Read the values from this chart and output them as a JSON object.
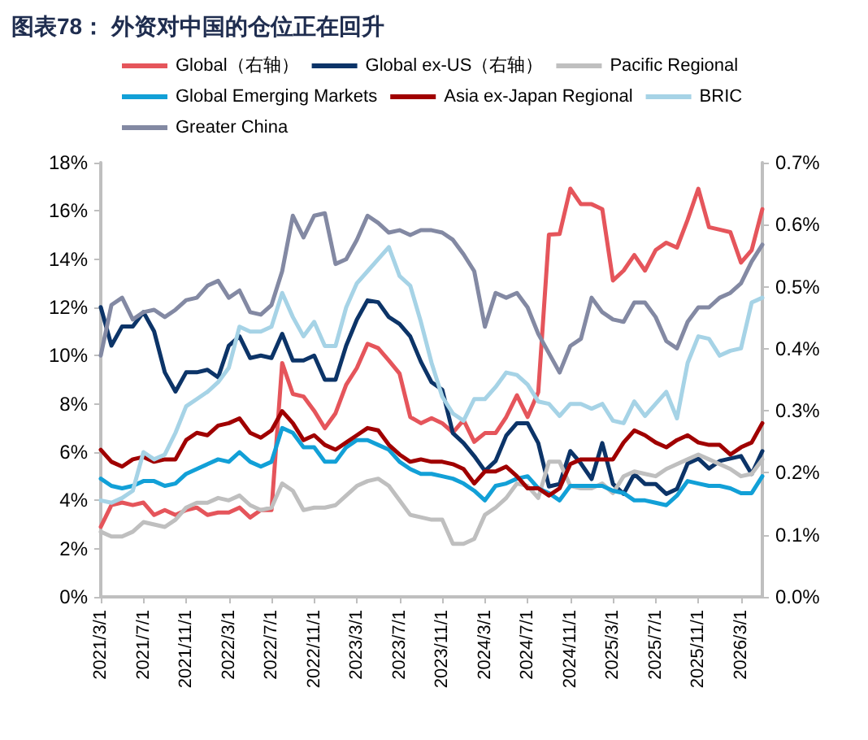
{
  "chart_data": {
    "type": "line",
    "title": "图表78： 外资对中国的仓位正在回升",
    "categories": [
      "2021/3/1",
      null,
      null,
      null,
      "2021/7/1",
      null,
      null,
      null,
      "2021/11/1",
      null,
      null,
      null,
      "2022/3/1",
      null,
      null,
      null,
      "2022/7/1",
      null,
      null,
      null,
      "2022/11/1",
      null,
      null,
      null,
      "2023/3/1",
      null,
      null,
      null,
      "2023/7/1",
      null,
      null,
      null,
      "2023/11/1",
      null,
      null,
      null,
      "2024/3/1",
      null,
      null,
      null,
      "2024/7/1",
      null,
      null,
      null,
      "2024/11/1",
      null,
      null,
      null,
      "2025/3/1",
      null,
      null,
      null,
      "2025/7/1",
      null,
      null,
      null,
      "2025/11/1",
      null,
      null,
      null,
      "2026/3/1",
      null,
      null
    ],
    "series": [
      {
        "name": "Global（右轴）",
        "color": "#e5555b",
        "axis": "y2",
        "values": [
          0.113,
          0.148,
          0.152,
          0.148,
          0.152,
          0.132,
          0.14,
          0.132,
          0.14,
          0.144,
          0.132,
          0.136,
          0.136,
          0.144,
          0.128,
          0.14,
          0.14,
          0.377,
          0.327,
          0.323,
          0.3,
          0.272,
          0.296,
          0.342,
          0.369,
          0.408,
          0.401,
          0.381,
          0.36,
          0.29,
          0.28,
          0.288,
          0.28,
          0.265,
          0.285,
          0.25,
          0.264,
          0.264,
          0.29,
          0.325,
          0.29,
          0.33,
          0.584,
          0.585,
          0.658,
          0.633,
          0.633,
          0.625,
          0.51,
          0.526,
          0.551,
          0.526,
          0.559,
          0.571,
          0.563,
          0.608,
          0.658,
          0.596,
          0.592,
          0.588,
          0.539,
          0.559,
          0.625
        ]
      },
      {
        "name": "Global ex-US（右轴）",
        "color": "#0c3468",
        "axis": "y2",
        "values": [
          0.467,
          0.405,
          0.436,
          0.436,
          0.459,
          0.428,
          0.362,
          0.331,
          0.362,
          0.362,
          0.366,
          0.354,
          0.405,
          0.42,
          0.385,
          0.389,
          0.385,
          0.424,
          0.381,
          0.381,
          0.389,
          0.35,
          0.35,
          0.405,
          0.447,
          0.478,
          0.475,
          0.451,
          0.44,
          0.42,
          0.379,
          0.346,
          0.334,
          0.264,
          0.248,
          0.227,
          0.203,
          0.219,
          0.26,
          0.28,
          0.28,
          0.248,
          0.178,
          0.182,
          0.235,
          0.215,
          0.19,
          0.248,
          0.182,
          0.166,
          0.198,
          0.182,
          0.182,
          0.166,
          0.174,
          0.215,
          0.223,
          0.207,
          0.219,
          0.223,
          0.227,
          0.198,
          0.235
        ]
      },
      {
        "name": "Pacific Regional",
        "color": "#bfbfbf",
        "values": [
          2.7,
          2.5,
          2.5,
          2.7,
          3.1,
          3.0,
          2.9,
          3.2,
          3.7,
          3.9,
          3.9,
          4.1,
          4.0,
          4.2,
          3.8,
          3.6,
          3.7,
          4.7,
          4.4,
          3.6,
          3.7,
          3.7,
          3.8,
          4.2,
          4.6,
          4.8,
          4.9,
          4.6,
          4.0,
          3.4,
          3.3,
          3.2,
          3.2,
          2.2,
          2.2,
          2.4,
          3.4,
          3.7,
          4.1,
          4.7,
          4.6,
          4.1,
          5.6,
          5.6,
          4.6,
          4.5,
          4.5,
          4.7,
          4.3,
          5.0,
          5.2,
          5.1,
          5.0,
          5.3,
          5.5,
          5.7,
          5.9,
          5.7,
          5.5,
          5.3,
          5.0,
          5.1,
          5.7
        ]
      },
      {
        "name": "Global Emerging Markets",
        "color": "#12a0d7",
        "values": [
          4.9,
          4.6,
          4.5,
          4.6,
          4.8,
          4.8,
          4.6,
          4.7,
          5.1,
          5.3,
          5.5,
          5.7,
          5.6,
          6.0,
          5.6,
          5.4,
          5.6,
          7.0,
          6.8,
          6.2,
          6.2,
          5.6,
          5.6,
          6.2,
          6.5,
          6.5,
          6.3,
          6.1,
          5.6,
          5.3,
          5.1,
          5.1,
          5.0,
          4.9,
          4.7,
          4.4,
          4.0,
          4.6,
          4.7,
          4.9,
          5.0,
          4.5,
          4.3,
          4.0,
          4.6,
          4.6,
          4.6,
          4.6,
          4.4,
          4.3,
          4.0,
          4.0,
          3.9,
          3.8,
          4.2,
          4.8,
          4.7,
          4.6,
          4.6,
          4.5,
          4.3,
          4.3,
          5.0
        ]
      },
      {
        "name": "Asia ex-Japan Regional",
        "color": "#a00000",
        "values": [
          6.1,
          5.6,
          5.4,
          5.7,
          5.8,
          5.6,
          5.7,
          5.7,
          6.5,
          6.8,
          6.7,
          7.1,
          7.2,
          7.4,
          6.8,
          6.6,
          6.9,
          7.7,
          7.2,
          6.5,
          6.7,
          6.3,
          6.1,
          6.4,
          6.7,
          7.0,
          6.9,
          6.3,
          5.9,
          5.6,
          5.7,
          5.6,
          5.6,
          5.5,
          5.3,
          4.7,
          5.2,
          5.2,
          5.4,
          5.0,
          4.5,
          4.5,
          4.2,
          4.5,
          5.5,
          5.7,
          5.7,
          5.7,
          5.7,
          6.4,
          6.9,
          6.7,
          6.4,
          6.2,
          6.5,
          6.7,
          6.4,
          6.3,
          6.3,
          5.9,
          6.2,
          6.4,
          7.2
        ]
      },
      {
        "name": "BRIC",
        "color": "#a6d3e6",
        "values": [
          4.0,
          3.9,
          4.1,
          4.4,
          6.0,
          5.7,
          5.9,
          6.8,
          7.9,
          8.2,
          8.5,
          8.9,
          9.5,
          11.2,
          11.0,
          11.0,
          11.2,
          12.6,
          11.6,
          10.8,
          11.4,
          10.4,
          10.4,
          12.0,
          13.0,
          13.5,
          14.0,
          14.5,
          13.3,
          12.9,
          11.4,
          9.7,
          8.3,
          7.6,
          7.3,
          8.2,
          8.2,
          8.7,
          9.3,
          9.2,
          8.8,
          8.1,
          8.0,
          7.5,
          8.0,
          8.0,
          7.8,
          8.0,
          7.3,
          7.2,
          8.1,
          7.5,
          8.0,
          8.5,
          7.4,
          9.7,
          10.8,
          10.7,
          10.0,
          10.2,
          10.3,
          12.2,
          12.4
        ]
      },
      {
        "name": "Greater China",
        "color": "#8389a3",
        "values": [
          10.0,
          12.1,
          12.4,
          11.5,
          11.8,
          11.9,
          11.6,
          11.9,
          12.3,
          12.4,
          12.9,
          13.1,
          12.4,
          12.7,
          11.8,
          11.7,
          12.1,
          13.5,
          15.8,
          14.9,
          15.8,
          15.9,
          13.8,
          14.0,
          14.8,
          15.8,
          15.5,
          15.1,
          15.2,
          15.0,
          15.2,
          15.2,
          15.1,
          14.8,
          14.2,
          13.5,
          11.2,
          12.6,
          12.4,
          12.6,
          12.0,
          10.9,
          10.1,
          9.3,
          10.4,
          10.7,
          12.4,
          11.8,
          11.5,
          11.4,
          12.2,
          12.2,
          11.6,
          10.6,
          10.3,
          11.4,
          12.0,
          12.0,
          12.4,
          12.6,
          13.0,
          13.9,
          14.6
        ]
      }
    ],
    "ylim": [
      0,
      18
    ],
    "yticks": [
      {
        "value": 0,
        "label": "0%"
      },
      {
        "value": 2,
        "label": "2%"
      },
      {
        "value": 4,
        "label": "4%"
      },
      {
        "value": 6,
        "label": "6%"
      },
      {
        "value": 8,
        "label": "8%"
      },
      {
        "value": 10,
        "label": "10%"
      },
      {
        "value": 12,
        "label": "12%"
      },
      {
        "value": 14,
        "label": "14%"
      },
      {
        "value": 16,
        "label": "16%"
      },
      {
        "value": 18,
        "label": "18%"
      }
    ],
    "y2lim": [
      0,
      0.7
    ],
    "y2ticks": [
      {
        "value": 0,
        "label": "0.0%"
      },
      {
        "value": 0.1,
        "label": "0.1%"
      },
      {
        "value": 0.2,
        "label": "0.2%"
      },
      {
        "value": 0.3,
        "label": "0.3%"
      },
      {
        "value": 0.4,
        "label": "0.4%"
      },
      {
        "value": 0.5,
        "label": "0.5%"
      },
      {
        "value": 0.6,
        "label": "0.6%"
      },
      {
        "value": 0.7,
        "label": "0.7%"
      }
    ],
    "grid": false,
    "legend": "top",
    "marker": "none",
    "line_style": "solid"
  }
}
